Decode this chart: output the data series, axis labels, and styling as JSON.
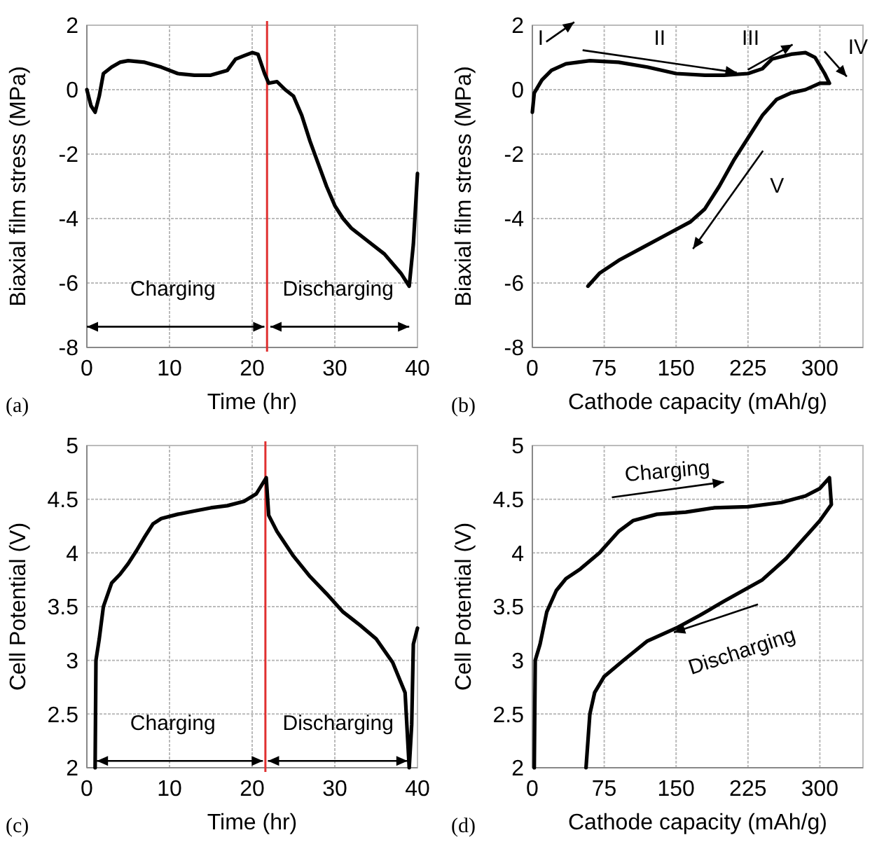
{
  "chart_data": [
    {
      "type": "line",
      "xlabel": "Time (hr)",
      "ylabel": "Biaxial film stress (MPa)",
      "xlim": [
        0,
        40
      ],
      "xticks": [
        0,
        10,
        20,
        30,
        40
      ],
      "ylim": [
        -8,
        2
      ],
      "yticks": [
        -8,
        -6,
        -4,
        -2,
        0,
        2
      ],
      "grid": true,
      "line_style": "solid",
      "marker": "none",
      "series": [
        {
          "color": "#000000",
          "x": [
            0,
            0.5,
            1,
            1.5,
            2,
            3,
            4,
            5,
            7,
            9,
            11,
            13,
            15,
            17,
            18,
            19,
            20,
            20.7,
            21.5,
            22,
            23,
            24,
            25,
            26,
            27,
            28,
            29,
            30,
            31,
            32,
            34,
            36,
            38,
            39,
            39.5,
            40
          ],
          "values": [
            0,
            -0.5,
            -0.7,
            -0.2,
            0.5,
            0.7,
            0.85,
            0.9,
            0.85,
            0.7,
            0.5,
            0.45,
            0.45,
            0.6,
            0.95,
            1.05,
            1.15,
            1.1,
            0.5,
            0.2,
            0.25,
            0,
            -0.2,
            -0.8,
            -1.6,
            -2.3,
            -3,
            -3.6,
            -4,
            -4.3,
            -4.7,
            -5.1,
            -5.7,
            -6.1,
            -4.8,
            -2.6
          ]
        }
      ],
      "ref_lines": [
        {
          "axis": "x",
          "value": 21.8,
          "color": "#e03030"
        }
      ],
      "annotations": [
        "Charging",
        "Discharging",
        "(a)"
      ]
    },
    {
      "type": "line",
      "xlabel": "Cathode capacity (mAh/g)",
      "ylabel": "Biaxial film stress (MPa)",
      "xlim": [
        0,
        345
      ],
      "xticks": [
        0,
        75,
        150,
        225,
        300
      ],
      "ylim": [
        -8,
        2
      ],
      "yticks": [
        -8,
        -6,
        -4,
        -2,
        0,
        2
      ],
      "grid": true,
      "line_style": "solid",
      "marker": "none",
      "series": [
        {
          "color": "#000000",
          "x": [
            0,
            2,
            10,
            20,
            35,
            60,
            90,
            120,
            150,
            180,
            200,
            225,
            240,
            250,
            270,
            285,
            295,
            305,
            310,
            300,
            285,
            270,
            255,
            240,
            225,
            210,
            195,
            180,
            165,
            140,
            115,
            90,
            70,
            58
          ],
          "values": [
            -0.7,
            -0.1,
            0.3,
            0.6,
            0.8,
            0.9,
            0.85,
            0.7,
            0.5,
            0.45,
            0.45,
            0.5,
            0.65,
            0.95,
            1.1,
            1.15,
            1,
            0.5,
            0.2,
            0.2,
            0,
            -0.1,
            -0.3,
            -0.8,
            -1.5,
            -2.2,
            -3,
            -3.7,
            -4.1,
            -4.5,
            -4.9,
            -5.3,
            -5.7,
            -6.1
          ]
        }
      ],
      "annotations": [
        "I",
        "II",
        "III",
        "IV",
        "V",
        "(b)"
      ]
    },
    {
      "type": "line",
      "xlabel": "Time (hr)",
      "ylabel": "Cell Potential (V)",
      "xlim": [
        0,
        40
      ],
      "xticks": [
        0,
        10,
        20,
        30,
        40
      ],
      "ylim": [
        2,
        5
      ],
      "yticks": [
        2,
        2.5,
        3,
        3.5,
        4,
        4.5,
        5
      ],
      "grid": true,
      "line_style": "solid",
      "marker": "none",
      "series": [
        {
          "color": "#000000",
          "x": [
            1,
            1.1,
            1.5,
            2,
            3,
            4,
            5,
            6,
            7,
            8,
            9,
            11,
            13,
            15,
            17,
            19,
            20.5,
            21.7,
            22,
            23,
            25,
            27,
            29,
            31,
            33,
            35,
            37,
            38.5,
            39,
            39.3,
            39.5,
            40
          ],
          "values": [
            2,
            3,
            3.2,
            3.5,
            3.72,
            3.8,
            3.9,
            4.02,
            4.15,
            4.27,
            4.32,
            4.36,
            4.39,
            4.42,
            4.44,
            4.48,
            4.55,
            4.7,
            4.35,
            4.2,
            3.97,
            3.78,
            3.62,
            3.45,
            3.33,
            3.2,
            2.98,
            2.7,
            2,
            2.4,
            3.15,
            3.3
          ]
        }
      ],
      "ref_lines": [
        {
          "axis": "x",
          "value": 21.6,
          "color": "#e03030"
        }
      ],
      "annotations": [
        "Charging",
        "Discharging",
        "(c)"
      ]
    },
    {
      "type": "line",
      "xlabel": "Cathode capacity (mAh/g)",
      "ylabel": "Cell Potential (V)",
      "xlim": [
        0,
        345
      ],
      "xticks": [
        0,
        75,
        150,
        225,
        300
      ],
      "ylim": [
        2,
        5
      ],
      "yticks": [
        2,
        2.5,
        3,
        3.5,
        4,
        4.5,
        5
      ],
      "grid": true,
      "line_style": "solid",
      "marker": "none",
      "series": [
        {
          "color": "#000000",
          "x": [
            2,
            3,
            8,
            15,
            25,
            35,
            50,
            70,
            90,
            105,
            130,
            160,
            190,
            225,
            260,
            285,
            300,
            310,
            312,
            300,
            285,
            265,
            240,
            220,
            200,
            175,
            150,
            120,
            95,
            75,
            65,
            60,
            56
          ],
          "values": [
            2,
            3,
            3.15,
            3.45,
            3.65,
            3.76,
            3.85,
            4,
            4.2,
            4.3,
            4.36,
            4.38,
            4.42,
            4.43,
            4.47,
            4.53,
            4.6,
            4.7,
            4.45,
            4.3,
            4.15,
            3.95,
            3.75,
            3.65,
            3.55,
            3.42,
            3.3,
            3.18,
            3,
            2.85,
            2.7,
            2.5,
            2
          ]
        }
      ],
      "annotations": [
        "Charging",
        "Discharging",
        "(d)"
      ]
    }
  ]
}
